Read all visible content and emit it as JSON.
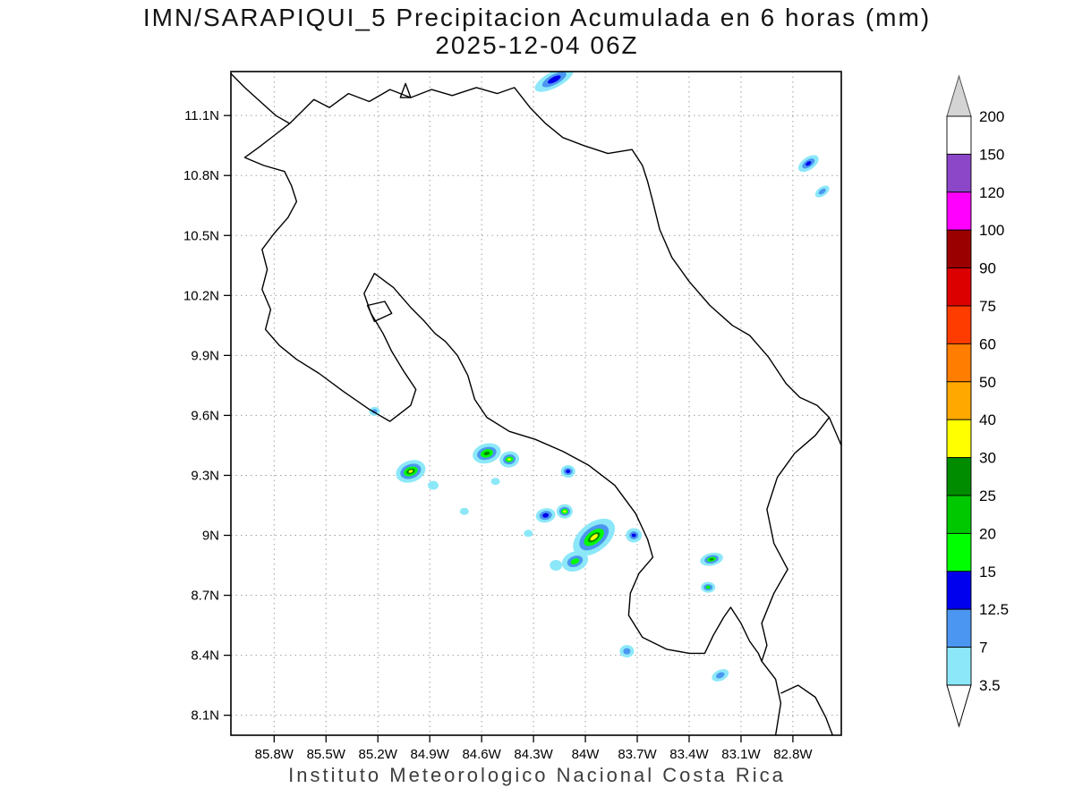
{
  "title": {
    "line1": "IMN/SARAPIQUI_5 Precipitacion Acumulada en 6 horas (mm)",
    "line2": "2025-12-04 06Z"
  },
  "footer": "Instituto Meteorologico Nacional Costa Rica",
  "map": {
    "lon_range": [
      -86.05,
      -82.52
    ],
    "lat_range": [
      8.0,
      11.32
    ],
    "lat_ticks": [
      {
        "value": 11.1,
        "label": "11.1N"
      },
      {
        "value": 10.8,
        "label": "10.8N"
      },
      {
        "value": 10.5,
        "label": "10.5N"
      },
      {
        "value": 10.2,
        "label": "10.2N"
      },
      {
        "value": 9.9,
        "label": "9.9N"
      },
      {
        "value": 9.6,
        "label": "9.6N"
      },
      {
        "value": 9.3,
        "label": "9.3N"
      },
      {
        "value": 9.0,
        "label": "9N"
      },
      {
        "value": 8.7,
        "label": "8.7N"
      },
      {
        "value": 8.4,
        "label": "8.4N"
      },
      {
        "value": 8.1,
        "label": "8.1N"
      }
    ],
    "lon_ticks": [
      {
        "value": -85.8,
        "label": "85.8W"
      },
      {
        "value": -85.5,
        "label": "85.5W"
      },
      {
        "value": -85.2,
        "label": "85.2W"
      },
      {
        "value": -84.9,
        "label": "84.9W"
      },
      {
        "value": -84.6,
        "label": "84.6W"
      },
      {
        "value": -84.3,
        "label": "84.3W"
      },
      {
        "value": -84.0,
        "label": "84W"
      },
      {
        "value": -83.7,
        "label": "83.7W"
      },
      {
        "value": -83.4,
        "label": "83.4W"
      },
      {
        "value": -83.1,
        "label": "83.1W"
      },
      {
        "value": -82.8,
        "label": "82.8W"
      }
    ],
    "coastline": [
      {
        "name": "nicaragua-coast-north-border-caribbean-coast",
        "closed": false,
        "points": [
          [
            -86.05,
            11.31
          ],
          [
            -85.97,
            11.24
          ],
          [
            -85.88,
            11.17
          ],
          [
            -85.79,
            11.1
          ],
          [
            -85.71,
            11.06
          ],
          [
            -85.64,
            11.12
          ],
          [
            -85.57,
            11.18
          ],
          [
            -85.48,
            11.14
          ],
          [
            -85.37,
            11.21
          ],
          [
            -85.25,
            11.17
          ],
          [
            -85.13,
            11.23
          ],
          [
            -85.01,
            11.19
          ],
          [
            -84.89,
            11.23
          ],
          [
            -84.77,
            11.2
          ],
          [
            -84.63,
            11.24
          ],
          [
            -84.51,
            11.21
          ],
          [
            -84.41,
            11.24
          ],
          [
            -84.32,
            11.14
          ],
          [
            -84.23,
            11.06
          ],
          [
            -84.13,
            10.99
          ],
          [
            -84.01,
            10.95
          ],
          [
            -83.87,
            10.91
          ],
          [
            -83.73,
            10.93
          ],
          [
            -83.67,
            10.85
          ],
          [
            -83.64,
            10.77
          ],
          [
            -83.61,
            10.67
          ],
          [
            -83.57,
            10.53
          ],
          [
            -83.5,
            10.39
          ],
          [
            -83.4,
            10.27
          ],
          [
            -83.28,
            10.15
          ],
          [
            -83.15,
            10.05
          ],
          [
            -83.05,
            10.0
          ],
          [
            -82.94,
            9.89
          ],
          [
            -82.84,
            9.76
          ],
          [
            -82.76,
            9.69
          ],
          [
            -82.66,
            9.65
          ],
          [
            -82.59,
            9.59
          ],
          [
            -82.53,
            9.47
          ],
          [
            -82.5,
            9.41
          ]
        ]
      },
      {
        "name": "panama-border",
        "closed": false,
        "points": [
          [
            -82.59,
            9.59
          ],
          [
            -82.67,
            9.5
          ],
          [
            -82.79,
            9.41
          ],
          [
            -82.89,
            9.29
          ],
          [
            -82.95,
            9.13
          ],
          [
            -82.91,
            8.96
          ],
          [
            -82.83,
            8.83
          ],
          [
            -82.91,
            8.71
          ],
          [
            -82.98,
            8.56
          ],
          [
            -82.95,
            8.45
          ],
          [
            -82.98,
            8.37
          ],
          [
            -82.9,
            8.28
          ],
          [
            -82.87,
            8.16
          ],
          [
            -82.9,
            8.0
          ]
        ]
      },
      {
        "name": "panama-pacific-coast",
        "closed": false,
        "points": [
          [
            -82.87,
            8.21
          ],
          [
            -82.77,
            8.25
          ],
          [
            -82.67,
            8.19
          ],
          [
            -82.61,
            8.09
          ],
          [
            -82.57,
            8.0
          ]
        ]
      },
      {
        "name": "costa-rica-pacific-coast",
        "closed": false,
        "points": [
          [
            -85.71,
            11.06
          ],
          [
            -85.8,
            11.0
          ],
          [
            -85.89,
            10.94
          ],
          [
            -85.97,
            10.89
          ],
          [
            -85.86,
            10.85
          ],
          [
            -85.74,
            10.82
          ],
          [
            -85.7,
            10.75
          ],
          [
            -85.67,
            10.67
          ],
          [
            -85.72,
            10.59
          ],
          [
            -85.8,
            10.51
          ],
          [
            -85.87,
            10.43
          ],
          [
            -85.84,
            10.33
          ],
          [
            -85.87,
            10.23
          ],
          [
            -85.82,
            10.13
          ],
          [
            -85.85,
            10.03
          ],
          [
            -85.77,
            9.95
          ],
          [
            -85.67,
            9.88
          ],
          [
            -85.54,
            9.81
          ],
          [
            -85.4,
            9.72
          ],
          [
            -85.25,
            9.63
          ],
          [
            -85.13,
            9.57
          ],
          [
            -85.01,
            9.65
          ],
          [
            -84.98,
            9.73
          ],
          [
            -85.05,
            9.82
          ],
          [
            -85.12,
            9.92
          ],
          [
            -85.17,
            10.01
          ],
          [
            -85.24,
            10.11
          ],
          [
            -85.28,
            10.21
          ],
          [
            -85.22,
            10.31
          ],
          [
            -85.11,
            10.24
          ],
          [
            -85.01,
            10.14
          ],
          [
            -84.93,
            10.07
          ],
          [
            -84.87,
            10.01
          ],
          [
            -84.81,
            9.97
          ],
          [
            -84.74,
            9.9
          ],
          [
            -84.68,
            9.8
          ],
          [
            -84.64,
            9.68
          ],
          [
            -84.57,
            9.59
          ],
          [
            -84.44,
            9.52
          ],
          [
            -84.29,
            9.48
          ],
          [
            -84.13,
            9.42
          ],
          [
            -83.98,
            9.35
          ],
          [
            -83.83,
            9.25
          ],
          [
            -83.71,
            9.11
          ],
          [
            -83.64,
            8.98
          ],
          [
            -83.61,
            8.89
          ],
          [
            -83.69,
            8.81
          ],
          [
            -83.74,
            8.71
          ],
          [
            -83.75,
            8.6
          ],
          [
            -83.67,
            8.49
          ],
          [
            -83.53,
            8.43
          ],
          [
            -83.4,
            8.41
          ],
          [
            -83.31,
            8.41
          ],
          [
            -83.26,
            8.5
          ],
          [
            -83.2,
            8.59
          ],
          [
            -83.16,
            8.64
          ],
          [
            -83.1,
            8.56
          ],
          [
            -83.05,
            8.47
          ],
          [
            -83.0,
            8.41
          ],
          [
            -82.98,
            8.37
          ]
        ]
      },
      {
        "name": "chira-island",
        "closed": true,
        "points": [
          [
            -85.26,
            10.15
          ],
          [
            -85.16,
            10.17
          ],
          [
            -85.12,
            10.11
          ],
          [
            -85.22,
            10.07
          ]
        ]
      },
      {
        "name": "small-islet",
        "closed": true,
        "points": [
          [
            -85.07,
            11.19
          ],
          [
            -85.01,
            11.19
          ],
          [
            -85.04,
            11.26
          ]
        ]
      }
    ],
    "cells": [
      {
        "lon": -84.18,
        "lat": 11.28,
        "rot": -28,
        "layers": [
          [
            "p",
            24,
            9
          ],
          [
            "s",
            15,
            5.5
          ],
          [
            "b",
            8,
            3
          ]
        ]
      },
      {
        "lon": -82.71,
        "lat": 10.86,
        "rot": -35,
        "layers": [
          [
            "p",
            13,
            7
          ],
          [
            "s",
            8,
            4
          ],
          [
            "b",
            3.5,
            2
          ]
        ]
      },
      {
        "lon": -82.63,
        "lat": 10.72,
        "rot": -35,
        "layers": [
          [
            "p",
            9,
            5
          ],
          [
            "s",
            4.5,
            2.5
          ]
        ]
      },
      {
        "lon": -85.22,
        "lat": 9.62,
        "rot": 0,
        "layers": [
          [
            "p",
            6,
            5
          ],
          [
            "s",
            3,
            2.5
          ]
        ]
      },
      {
        "lon": -85.01,
        "lat": 9.32,
        "rot": -20,
        "layers": [
          [
            "p",
            17,
            12
          ],
          [
            "s",
            12,
            8
          ],
          [
            "g1",
            8,
            5
          ],
          [
            "g3",
            5,
            3
          ],
          [
            "y",
            2.5,
            1.5
          ]
        ]
      },
      {
        "lon": -84.88,
        "lat": 9.25,
        "rot": 0,
        "layers": [
          [
            "p",
            6,
            5
          ]
        ]
      },
      {
        "lon": -84.57,
        "lat": 9.41,
        "rot": -15,
        "layers": [
          [
            "p",
            16,
            11
          ],
          [
            "s",
            11,
            7
          ],
          [
            "g1",
            7,
            4.5
          ],
          [
            "g3",
            3.5,
            2
          ]
        ]
      },
      {
        "lon": -84.44,
        "lat": 9.38,
        "rot": -10,
        "layers": [
          [
            "p",
            11,
            9
          ],
          [
            "s",
            7,
            5.5
          ],
          [
            "g1",
            4.5,
            3
          ],
          [
            "y",
            2,
            1.2
          ]
        ]
      },
      {
        "lon": -84.7,
        "lat": 9.12,
        "rot": 0,
        "layers": [
          [
            "p",
            5,
            4
          ]
        ]
      },
      {
        "lon": -84.1,
        "lat": 9.32,
        "rot": 0,
        "layers": [
          [
            "p",
            8,
            7
          ],
          [
            "s",
            5,
            4
          ],
          [
            "b",
            2.5,
            2
          ]
        ]
      },
      {
        "lon": -84.23,
        "lat": 9.1,
        "rot": -10,
        "layers": [
          [
            "p",
            11,
            8
          ],
          [
            "s",
            7,
            5
          ],
          [
            "b",
            3.5,
            2.5
          ]
        ]
      },
      {
        "lon": -84.12,
        "lat": 9.12,
        "rot": 0,
        "layers": [
          [
            "p",
            9,
            8
          ],
          [
            "s",
            6,
            5
          ],
          [
            "g1",
            4,
            3
          ],
          [
            "y",
            1.8,
            1.3
          ]
        ]
      },
      {
        "lon": -83.95,
        "lat": 8.99,
        "rot": -38,
        "layers": [
          [
            "p",
            27,
            16
          ],
          [
            "s",
            19,
            11
          ],
          [
            "g1",
            13,
            7
          ],
          [
            "g3",
            8,
            4
          ],
          [
            "y",
            5,
            2.2
          ]
        ]
      },
      {
        "lon": -84.06,
        "lat": 8.87,
        "rot": -20,
        "layers": [
          [
            "p",
            15,
            11
          ],
          [
            "s",
            9,
            6
          ],
          [
            "g1",
            5,
            3
          ]
        ]
      },
      {
        "lon": -84.17,
        "lat": 8.85,
        "rot": 0,
        "layers": [
          [
            "p",
            7,
            6
          ]
        ]
      },
      {
        "lon": -83.72,
        "lat": 9.0,
        "rot": 0,
        "layers": [
          [
            "p",
            9,
            8
          ],
          [
            "s",
            5,
            4.5
          ],
          [
            "b",
            2.5,
            2
          ]
        ]
      },
      {
        "lon": -84.33,
        "lat": 9.01,
        "rot": 0,
        "layers": [
          [
            "p",
            5,
            4
          ]
        ]
      },
      {
        "lon": -83.27,
        "lat": 8.88,
        "rot": -12,
        "layers": [
          [
            "p",
            13,
            7
          ],
          [
            "s",
            8,
            4.5
          ],
          [
            "g1",
            5,
            2.5
          ],
          [
            "g3",
            2.5,
            1.3
          ]
        ]
      },
      {
        "lon": -83.29,
        "lat": 8.74,
        "rot": 0,
        "layers": [
          [
            "p",
            8,
            6
          ],
          [
            "s",
            5,
            3.5
          ],
          [
            "g1",
            2.5,
            1.8
          ]
        ]
      },
      {
        "lon": -83.76,
        "lat": 8.42,
        "rot": 0,
        "layers": [
          [
            "p",
            8,
            7
          ],
          [
            "s",
            4,
            3.5
          ]
        ]
      },
      {
        "lon": -83.22,
        "lat": 8.3,
        "rot": -25,
        "layers": [
          [
            "p",
            10,
            6
          ],
          [
            "s",
            5,
            3
          ]
        ]
      },
      {
        "lon": -84.52,
        "lat": 9.27,
        "rot": 0,
        "layers": [
          [
            "p",
            5,
            4
          ]
        ]
      }
    ]
  },
  "palette": {
    "p": "#8ce8f8",
    "s": "#4b96f0",
    "b": "#0000ee",
    "g1": "#00ff00",
    "g2": "#00c800",
    "g3": "#008c00",
    "y": "#ffff00"
  },
  "colorbar": {
    "labels": [
      "200",
      "150",
      "120",
      "100",
      "90",
      "75",
      "60",
      "50",
      "40",
      "30",
      "25",
      "20",
      "15",
      "12.5",
      "7",
      "3.5"
    ],
    "band_colors": [
      "#ffffff",
      "#8c46c8",
      "#ff00ff",
      "#9b0000",
      "#dd0000",
      "#ff3c00",
      "#ff7d00",
      "#ffa800",
      "#ffff00",
      "#008c00",
      "#00c800",
      "#00ff00",
      "#0000ee",
      "#4b96f0",
      "#8ce8f8"
    ],
    "arrow_top_color": "#d4d4d4",
    "arrow_bottom_color": "#ffffff"
  },
  "colors": {
    "grid": "#a0a0a0",
    "coast": "#000000",
    "frame": "#000000",
    "text": "#000000"
  }
}
